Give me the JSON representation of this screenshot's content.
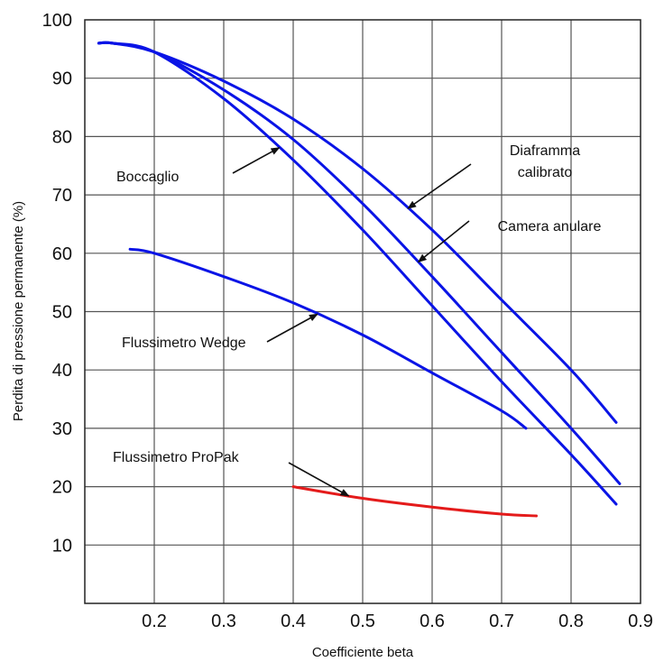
{
  "chart_data": {
    "type": "line",
    "title": "",
    "xlabel": "Coefficiente beta",
    "ylabel": "Perdita di pressione permanente (%)",
    "xlim": [
      0.1,
      0.9
    ],
    "ylim": [
      0,
      100
    ],
    "grid": true,
    "x_ticks": [
      "0.2",
      "0.3",
      "0.4",
      "0.5",
      "0.6",
      "0.7",
      "0.8",
      "0.9"
    ],
    "y_ticks": [
      "10",
      "20",
      "30",
      "40",
      "50",
      "60",
      "70",
      "80",
      "90",
      "100"
    ],
    "series": [
      {
        "name": "Diaframma calibrato",
        "color": "#0a14e6",
        "x": [
          0.12,
          0.14,
          0.2,
          0.3,
          0.4,
          0.5,
          0.6,
          0.7,
          0.8,
          0.865
        ],
        "y": [
          96,
          96,
          94.5,
          89.5,
          83,
          74.5,
          64,
          52,
          40,
          31
        ]
      },
      {
        "name": "Camera anulare",
        "color": "#0a14e6",
        "x": [
          0.12,
          0.14,
          0.2,
          0.3,
          0.4,
          0.5,
          0.6,
          0.7,
          0.8,
          0.87
        ],
        "y": [
          96,
          96,
          94.5,
          88,
          79.5,
          68.5,
          56,
          43,
          30,
          20.5
        ]
      },
      {
        "name": "Boccaglio",
        "color": "#0a14e6",
        "x": [
          0.12,
          0.14,
          0.2,
          0.3,
          0.4,
          0.5,
          0.6,
          0.7,
          0.8,
          0.865
        ],
        "y": [
          96,
          96,
          94.5,
          86.5,
          76,
          64,
          51,
          38,
          25.5,
          17
        ]
      },
      {
        "name": "Flussimetro Wedge",
        "color": "#0a14e6",
        "x": [
          0.165,
          0.2,
          0.3,
          0.4,
          0.5,
          0.6,
          0.7,
          0.735
        ],
        "y": [
          60.7,
          60,
          56,
          51.5,
          46,
          39.5,
          33,
          30
        ]
      },
      {
        "name": "Flussimetro ProPak",
        "color": "#e41b1b",
        "x": [
          0.4,
          0.5,
          0.6,
          0.7,
          0.75
        ],
        "y": [
          20,
          18,
          16.5,
          15.3,
          15
        ]
      }
    ],
    "annotations": [
      {
        "text": "Boccaglio",
        "series": "Boccaglio",
        "at_x": 0.38
      },
      {
        "text": "Diaframma",
        "text2": "calibrato",
        "series": "Diaframma calibrato",
        "at_x": 0.565
      },
      {
        "text": "Camera anulare",
        "series": "Camera anulare",
        "at_x": 0.58
      },
      {
        "text": "Flussimetro Wedge",
        "series": "Flussimetro Wedge",
        "at_x": 0.435
      },
      {
        "text": "Flussimetro ProPak",
        "series": "Flussimetro ProPak",
        "at_x": 0.48
      }
    ]
  }
}
